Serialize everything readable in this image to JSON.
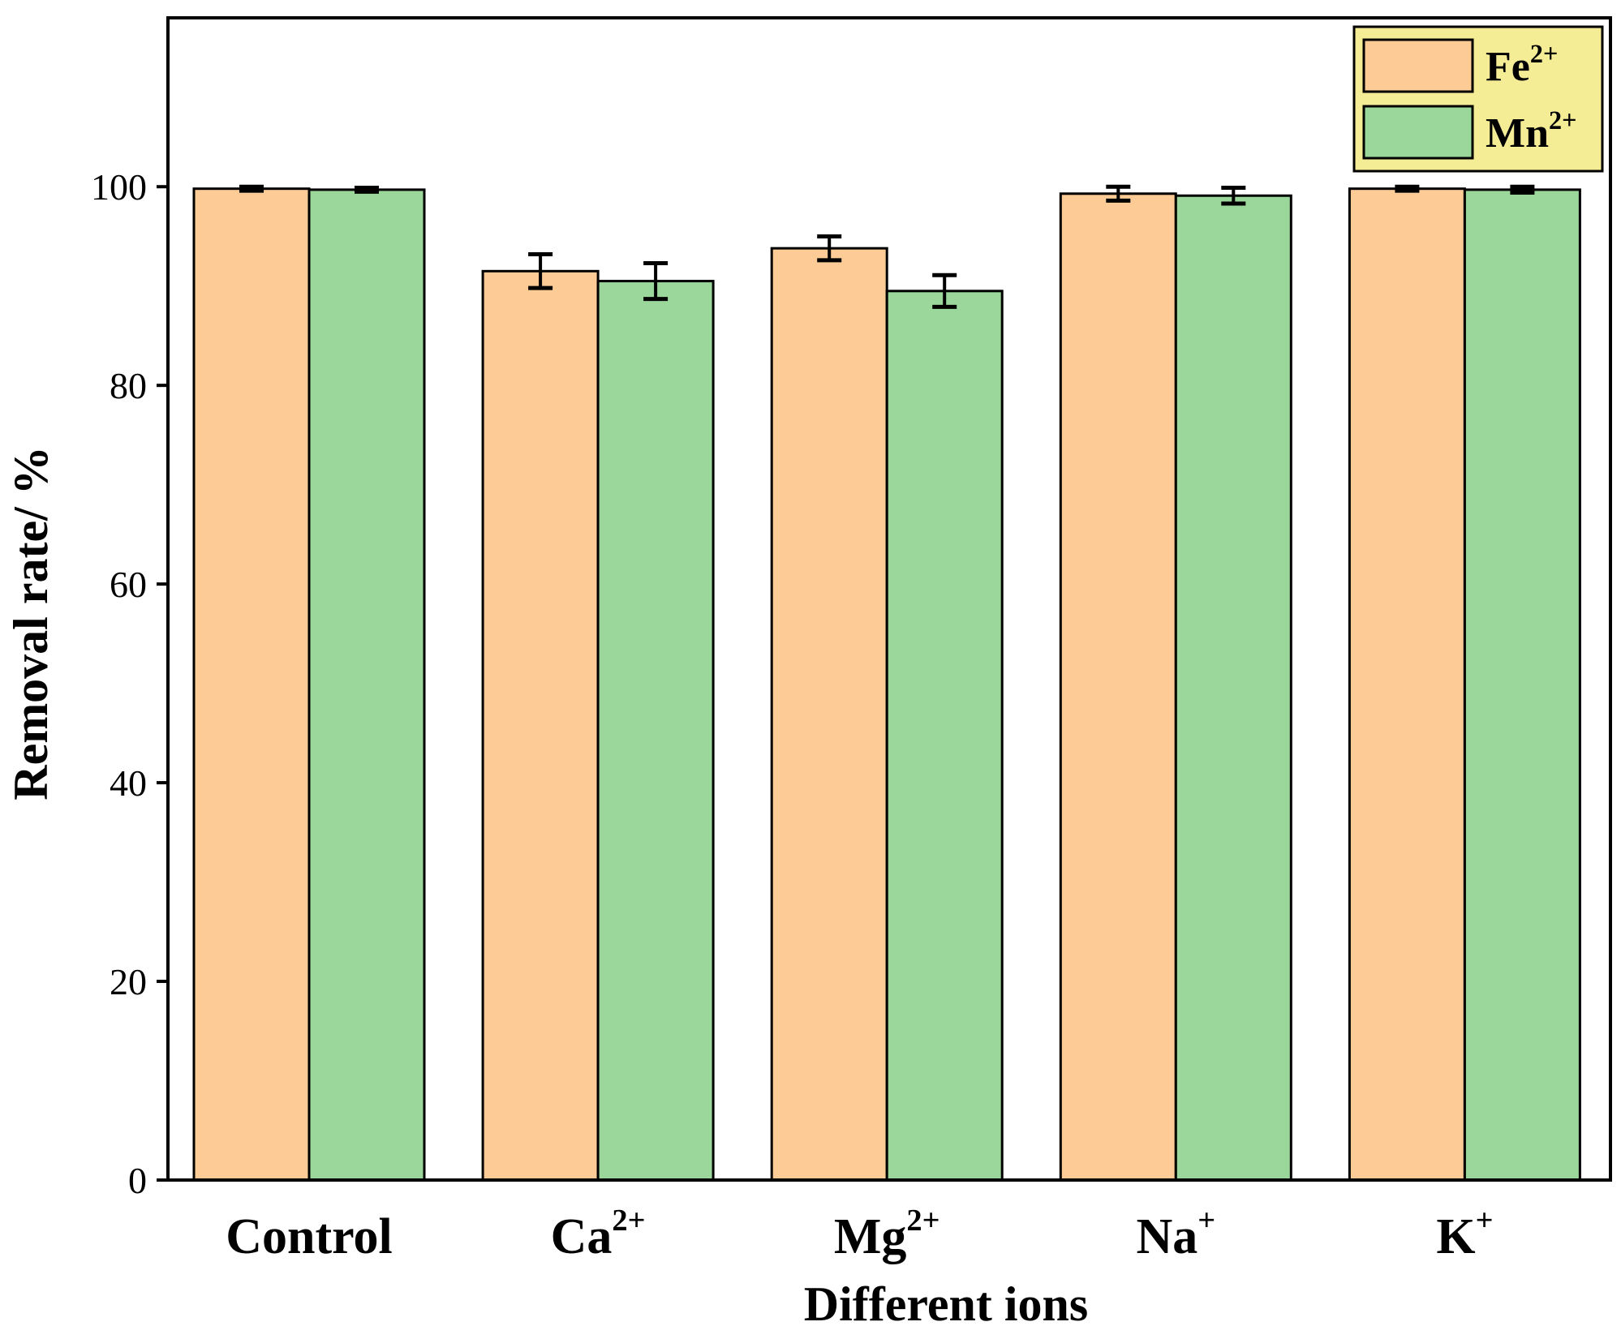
{
  "chart_data": {
    "type": "bar",
    "title": "",
    "xlabel": "Different ions",
    "ylabel": "Removal rate/ %",
    "ylim": [
      0,
      117
    ],
    "yticks": [
      0,
      20,
      40,
      60,
      80,
      100
    ],
    "grid": false,
    "legend_position": "top-right",
    "categories": [
      {
        "base": "Control",
        "sup": ""
      },
      {
        "base": "Ca",
        "sup": "2+"
      },
      {
        "base": "Mg",
        "sup": "2+"
      },
      {
        "base": "Na",
        "sup": "+"
      },
      {
        "base": "K",
        "sup": "+"
      }
    ],
    "series": [
      {
        "name": "Fe2+",
        "label_base": "Fe",
        "label_sup": "2+",
        "color": "#FDCC96",
        "values": [
          99.8,
          91.5,
          93.8,
          99.3,
          99.8
        ],
        "errors": [
          0.2,
          1.7,
          1.2,
          0.7,
          0.2
        ]
      },
      {
        "name": "Mn2+",
        "label_base": "Mn",
        "label_sup": "2+",
        "color": "#9BD69B",
        "values": [
          99.7,
          90.5,
          89.5,
          99.1,
          99.7
        ],
        "errors": [
          0.2,
          1.8,
          1.6,
          0.8,
          0.3
        ]
      }
    ],
    "colors": {
      "axis": "#000000",
      "legend_background": "#F5EC96"
    }
  }
}
